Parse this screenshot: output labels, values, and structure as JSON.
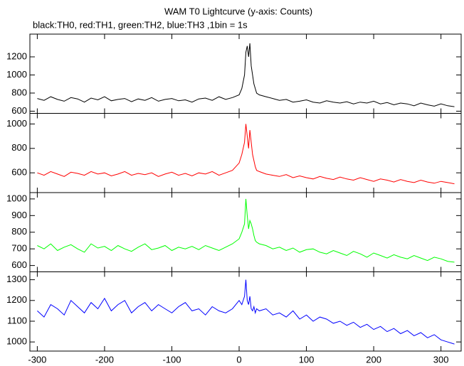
{
  "chart_data": [
    {
      "type": "line",
      "title": "WAM T0 Lightcurve (y-axis: Counts)",
      "subtitle": "black:TH0, red:TH1, green:TH2, blue:TH3 ,1bin = 1s",
      "x": [
        -300,
        -290,
        -280,
        -270,
        -260,
        -250,
        -240,
        -230,
        -220,
        -210,
        -200,
        -190,
        -180,
        -170,
        -160,
        -150,
        -140,
        -130,
        -120,
        -110,
        -100,
        -90,
        -80,
        -70,
        -60,
        -50,
        -40,
        -30,
        -20,
        -10,
        0,
        4,
        8,
        10,
        12,
        14,
        16,
        18,
        20,
        22,
        24,
        26,
        30,
        40,
        50,
        60,
        70,
        80,
        90,
        100,
        110,
        120,
        130,
        140,
        150,
        160,
        170,
        180,
        190,
        200,
        210,
        220,
        230,
        240,
        250,
        260,
        270,
        280,
        290,
        300,
        310,
        320
      ],
      "color": "#000000",
      "values": [
        740,
        720,
        760,
        730,
        710,
        750,
        735,
        700,
        745,
        725,
        760,
        715,
        730,
        740,
        705,
        735,
        720,
        750,
        710,
        730,
        740,
        715,
        725,
        700,
        735,
        745,
        720,
        760,
        730,
        750,
        780,
        850,
        1000,
        1250,
        1320,
        1200,
        1350,
        1100,
        1000,
        900,
        850,
        800,
        780,
        760,
        740,
        720,
        730,
        700,
        710,
        725,
        700,
        690,
        715,
        700,
        690,
        705,
        680,
        700,
        690,
        710,
        680,
        695,
        670,
        690,
        680,
        660,
        690,
        670,
        655,
        680,
        660,
        650
      ],
      "xlim": [
        -311,
        330
      ],
      "ylim": [
        576,
        1451
      ],
      "yticks": [
        600,
        800,
        1000,
        1200
      ]
    },
    {
      "type": "line",
      "x": [
        -300,
        -290,
        -280,
        -270,
        -260,
        -250,
        -240,
        -230,
        -220,
        -210,
        -200,
        -190,
        -180,
        -170,
        -160,
        -150,
        -140,
        -130,
        -120,
        -110,
        -100,
        -90,
        -80,
        -70,
        -60,
        -50,
        -40,
        -30,
        -20,
        -10,
        0,
        4,
        8,
        10,
        12,
        14,
        16,
        18,
        20,
        22,
        24,
        26,
        30,
        40,
        50,
        60,
        70,
        80,
        90,
        100,
        110,
        120,
        130,
        140,
        150,
        160,
        170,
        180,
        190,
        200,
        210,
        220,
        230,
        240,
        250,
        260,
        270,
        280,
        290,
        300,
        310,
        320
      ],
      "color": "#ff0000",
      "values": [
        600,
        580,
        610,
        590,
        570,
        605,
        595,
        580,
        610,
        590,
        600,
        575,
        590,
        610,
        580,
        595,
        585,
        600,
        570,
        590,
        605,
        580,
        595,
        575,
        600,
        590,
        610,
        580,
        600,
        620,
        680,
        750,
        850,
        1000,
        900,
        800,
        950,
        850,
        750,
        700,
        650,
        620,
        610,
        590,
        580,
        570,
        585,
        560,
        575,
        560,
        550,
        570,
        555,
        545,
        565,
        550,
        540,
        560,
        545,
        530,
        550,
        540,
        525,
        545,
        530,
        520,
        540,
        525,
        515,
        530,
        520,
        510
      ],
      "xlim": [
        -311,
        330
      ],
      "ylim": [
        438,
        1087
      ],
      "yticks": [
        600,
        800,
        1000
      ]
    },
    {
      "type": "line",
      "x": [
        -300,
        -290,
        -280,
        -270,
        -260,
        -250,
        -240,
        -230,
        -220,
        -210,
        -200,
        -190,
        -180,
        -170,
        -160,
        -150,
        -140,
        -130,
        -120,
        -110,
        -100,
        -90,
        -80,
        -70,
        -60,
        -50,
        -40,
        -30,
        -20,
        -10,
        0,
        4,
        8,
        10,
        12,
        14,
        16,
        18,
        20,
        22,
        24,
        26,
        30,
        40,
        50,
        60,
        70,
        80,
        90,
        100,
        110,
        120,
        130,
        140,
        150,
        160,
        170,
        180,
        190,
        200,
        210,
        220,
        230,
        240,
        250,
        260,
        270,
        280,
        290,
        300,
        310,
        320
      ],
      "color": "#00ff00",
      "values": [
        720,
        700,
        730,
        690,
        710,
        725,
        700,
        680,
        730,
        705,
        715,
        690,
        720,
        700,
        685,
        710,
        730,
        695,
        705,
        720,
        690,
        710,
        700,
        715,
        695,
        720,
        705,
        690,
        710,
        730,
        760,
        800,
        850,
        1000,
        900,
        820,
        870,
        850,
        820,
        780,
        750,
        740,
        730,
        720,
        700,
        710,
        690,
        705,
        680,
        695,
        700,
        680,
        670,
        690,
        675,
        660,
        685,
        670,
        650,
        675,
        660,
        645,
        665,
        650,
        640,
        660,
        645,
        630,
        650,
        640,
        625,
        620
      ],
      "xlim": [
        -311,
        330
      ],
      "ylim": [
        562,
        1038
      ],
      "yticks": [
        600,
        700,
        800,
        900,
        1000
      ]
    },
    {
      "type": "line",
      "x": [
        -300,
        -290,
        -280,
        -270,
        -260,
        -250,
        -240,
        -230,
        -220,
        -210,
        -200,
        -190,
        -180,
        -170,
        -160,
        -150,
        -140,
        -130,
        -120,
        -110,
        -100,
        -90,
        -80,
        -70,
        -60,
        -50,
        -40,
        -30,
        -20,
        -10,
        0,
        4,
        8,
        10,
        12,
        14,
        16,
        18,
        20,
        22,
        24,
        26,
        30,
        40,
        50,
        60,
        70,
        80,
        90,
        100,
        110,
        120,
        130,
        140,
        150,
        160,
        170,
        180,
        190,
        200,
        210,
        220,
        230,
        240,
        250,
        260,
        270,
        280,
        290,
        300,
        310,
        320
      ],
      "color": "#0000ff",
      "values": [
        1150,
        1120,
        1180,
        1160,
        1130,
        1200,
        1170,
        1140,
        1190,
        1160,
        1210,
        1150,
        1180,
        1200,
        1140,
        1170,
        1190,
        1150,
        1180,
        1160,
        1140,
        1170,
        1190,
        1150,
        1160,
        1130,
        1170,
        1150,
        1140,
        1160,
        1200,
        1180,
        1220,
        1300,
        1200,
        1180,
        1220,
        1160,
        1150,
        1170,
        1140,
        1160,
        1150,
        1160,
        1130,
        1140,
        1120,
        1150,
        1110,
        1130,
        1100,
        1120,
        1110,
        1090,
        1100,
        1080,
        1095,
        1070,
        1085,
        1060,
        1075,
        1050,
        1065,
        1040,
        1055,
        1030,
        1045,
        1020,
        1035,
        1010,
        1000,
        990
      ],
      "xlim": [
        -311,
        330
      ],
      "ylim": [
        956,
        1338
      ],
      "yticks": [
        1000,
        1100,
        1200,
        1300
      ],
      "xticks": [
        -300,
        -200,
        -100,
        0,
        100,
        200,
        300
      ]
    }
  ]
}
